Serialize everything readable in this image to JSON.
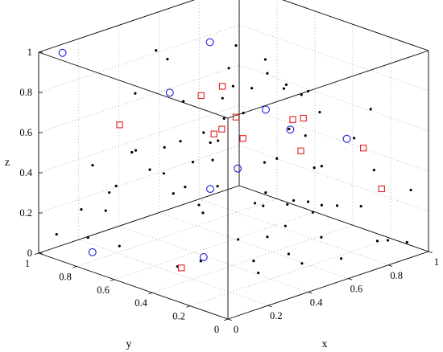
{
  "chart_data": {
    "type": "scatter",
    "xlabel": "x",
    "ylabel": "y",
    "zlabel": "z",
    "xlim": [
      0,
      1
    ],
    "ylim": [
      0,
      1
    ],
    "zlim": [
      0,
      1
    ],
    "x_ticks": [
      "0",
      "0.2",
      "0.4",
      "0.6",
      "0.8",
      "1"
    ],
    "y_ticks": [
      "0",
      "0.2",
      "0.4",
      "0.6",
      "0.8",
      "1"
    ],
    "z_ticks": [
      "0",
      "0.2",
      "0.4",
      "0.6",
      "0.8",
      "1"
    ],
    "x_tick_values": [
      0,
      0.2,
      0.4,
      0.6,
      0.8,
      1
    ],
    "y_tick_values": [
      0,
      0.2,
      0.4,
      0.6,
      0.8,
      1
    ],
    "z_tick_values": [
      0,
      0.2,
      0.4,
      0.6,
      0.8,
      1
    ],
    "grid": true,
    "colors": {
      "dots": "#000000",
      "circles": "#1f1fd6",
      "squares": "#e02020"
    },
    "series": [
      {
        "marker": "dot",
        "points": [
          [
            0.34,
            0.74,
            0.98
          ],
          [
            0.25,
            0.98,
            0.36
          ],
          [
            0.51,
            0.86,
            0.84
          ],
          [
            0.71,
            0.71,
            0.89
          ],
          [
            0.41,
            0.43,
            0.97
          ],
          [
            0.29,
            0.28,
            0.97
          ],
          [
            0.19,
            0.23,
            0.96
          ],
          [
            0.8,
            0.65,
            0.81
          ],
          [
            0.47,
            0.29,
            0.97
          ],
          [
            0.34,
            0.85,
            0.73
          ],
          [
            0.58,
            0.85,
            0.61
          ],
          [
            0.43,
            0.16,
            0.95
          ],
          [
            0.6,
            0.51,
            0.78
          ],
          [
            0.64,
            0.37,
            0.83
          ],
          [
            0.56,
            0.17,
            0.89
          ],
          [
            0.53,
            0.48,
            0.69
          ],
          [
            0.36,
            0.51,
            0.64
          ],
          [
            0.05,
            0.68,
            0.39
          ],
          [
            0.25,
            0.45,
            0.55
          ],
          [
            0.21,
            0.73,
            0.52
          ],
          [
            0.81,
            0.47,
            0.69
          ],
          [
            0.08,
            0.42,
            0.69
          ],
          [
            0.15,
            0.41,
            0.7
          ],
          [
            0.02,
            0.36,
            0.6
          ],
          [
            0.03,
            0.32,
            0.51
          ],
          [
            0.91,
            0.21,
            0.67
          ],
          [
            0.83,
            0.47,
            0.48
          ],
          [
            0.72,
            0.44,
            0.56
          ],
          [
            0.45,
            0.57,
            0.54
          ],
          [
            0.95,
            0.34,
            0.47
          ],
          [
            0.92,
            0.49,
            0.56
          ],
          [
            0.63,
            0.72,
            0.44
          ],
          [
            0.29,
            0.72,
            0.41
          ],
          [
            0.59,
            0.13,
            0.52
          ],
          [
            0.38,
            0.89,
            0.42
          ],
          [
            0.87,
            0.15,
            0.4
          ],
          [
            0.56,
            0.17,
            0.34
          ],
          [
            0.81,
            0.6,
            0.33
          ],
          [
            0.07,
            0.72,
            0.28
          ],
          [
            0.4,
            0.65,
            0.31
          ],
          [
            0.49,
            0.32,
            0.36
          ],
          [
            0.59,
            0.68,
            0.24
          ],
          [
            0.32,
            0.93,
            0.25
          ],
          [
            0.09,
            0.87,
            0.23
          ],
          [
            0.45,
            0.63,
            0.21
          ],
          [
            0.56,
            0.29,
            0.18
          ],
          [
            0.62,
            0.31,
            0.28
          ],
          [
            0.48,
            0.06,
            0.35
          ],
          [
            0.3,
            0.45,
            0.28
          ],
          [
            0.62,
            0.08,
            0.33
          ],
          [
            0.72,
            0.06,
            0.3
          ],
          [
            0.94,
            0.54,
            0.26
          ],
          [
            0.76,
            0.31,
            0.21
          ],
          [
            0.4,
            0.37,
            0.14
          ],
          [
            0.11,
            0.69,
            0.1
          ],
          [
            0.05,
            0.32,
            0.14
          ],
          [
            0.83,
            0.09,
            0.08
          ],
          [
            0.64,
            0.08,
            0.06
          ],
          [
            0.52,
            0.16,
            0.05
          ],
          [
            0.34,
            0.2,
            0.05
          ],
          [
            0.28,
            0.44,
            0.05
          ],
          [
            0.73,
            0.28,
            0.07
          ],
          [
            0.18,
            0.93,
            0.04
          ],
          [
            0.92,
            0.13,
            0.04
          ],
          [
            0.08,
            0.99,
            0.07
          ],
          [
            0.43,
            0.32,
            0.04
          ],
          [
            0.64,
            0.47,
            0.04
          ],
          [
            0.94,
            0.05,
            0.05
          ],
          [
            0.35,
            0.05,
            0.19
          ],
          [
            0.27,
            0.1,
            0.44
          ],
          [
            0.21,
            0.08,
            0.48
          ],
          [
            0.95,
            0.04,
            0.31
          ],
          [
            0.5,
            0.55,
            0.65
          ],
          [
            0.4,
            0.11,
            0.4
          ],
          [
            0.49,
            0.6,
            0.43
          ],
          [
            0.56,
            0.4,
            0.46
          ]
        ]
      },
      {
        "marker": "circle",
        "points": [
          [
            0.58,
            0.71,
            0.95
          ],
          [
            0.67,
            0.51,
            0.65
          ],
          [
            0.66,
            0.37,
            0.6
          ],
          [
            0.36,
            0.33,
            0.52
          ],
          [
            0.55,
            0.89,
            0.65
          ],
          [
            0.1,
            0.98,
            0.97
          ],
          [
            0.07,
            0.79,
            0.05
          ],
          [
            0.36,
            0.51,
            0.02
          ],
          [
            0.61,
            0.74,
            0.2
          ],
          [
            0.97,
            0.4,
            0.44
          ]
        ]
      },
      {
        "marker": "square",
        "points": [
          [
            0.14,
            0.29,
            0.97
          ],
          [
            0.51,
            0.57,
            0.8
          ],
          [
            0.54,
            0.53,
            0.65
          ],
          [
            0.71,
            0.41,
            0.62
          ],
          [
            0.46,
            0.52,
            0.62
          ],
          [
            0.61,
            0.72,
            0.48
          ],
          [
            0.59,
            0.24,
            0.56
          ],
          [
            0.82,
            0.47,
            0.57
          ],
          [
            0.93,
            0.27,
            0.45
          ],
          [
            0.87,
            0.11,
            0.32
          ],
          [
            0.24,
            0.5,
            0.01
          ],
          [
            0.13,
            0.71,
            0.69
          ],
          [
            0.49,
            0.44,
            0.59
          ]
        ]
      }
    ]
  }
}
